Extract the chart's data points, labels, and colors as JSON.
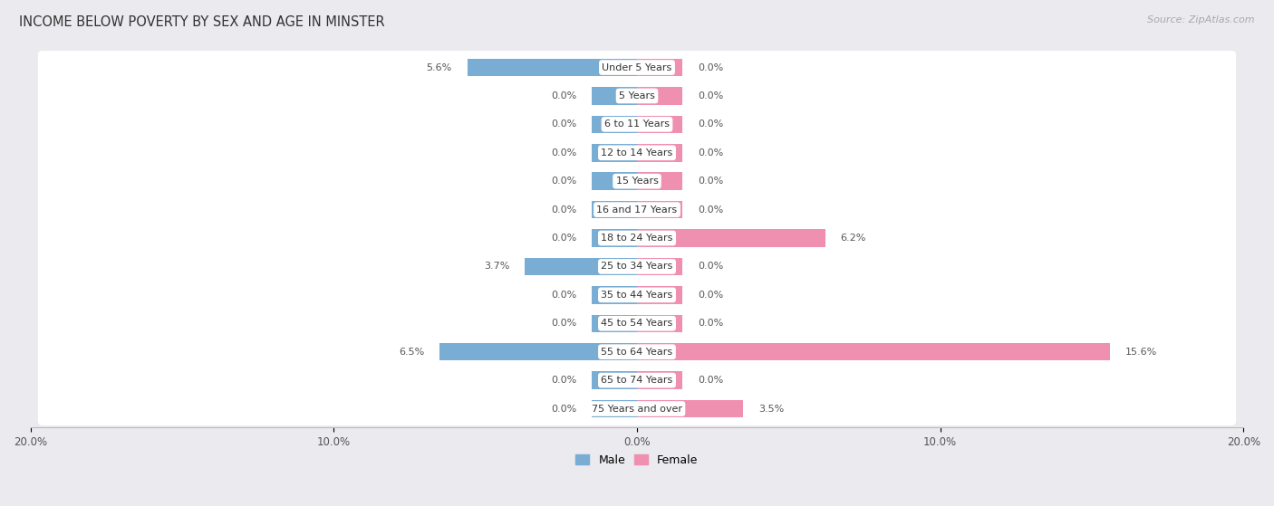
{
  "title": "INCOME BELOW POVERTY BY SEX AND AGE IN MINSTER",
  "source": "Source: ZipAtlas.com",
  "categories": [
    "Under 5 Years",
    "5 Years",
    "6 to 11 Years",
    "12 to 14 Years",
    "15 Years",
    "16 and 17 Years",
    "18 to 24 Years",
    "25 to 34 Years",
    "35 to 44 Years",
    "45 to 54 Years",
    "55 to 64 Years",
    "65 to 74 Years",
    "75 Years and over"
  ],
  "male_values": [
    5.6,
    0.0,
    0.0,
    0.0,
    0.0,
    0.0,
    0.0,
    3.7,
    0.0,
    0.0,
    6.5,
    0.0,
    0.0
  ],
  "female_values": [
    0.0,
    0.0,
    0.0,
    0.0,
    0.0,
    0.0,
    6.2,
    0.0,
    0.0,
    0.0,
    15.6,
    0.0,
    3.5
  ],
  "male_color": "#7aadd4",
  "female_color": "#f090b0",
  "male_label": "Male",
  "female_label": "Female",
  "xlim": 20.0,
  "min_bar": 1.5,
  "bar_height": 0.62,
  "background_color": "#eaeaef",
  "row_bg_color": "#ffffff",
  "title_fontsize": 10.5,
  "label_fontsize": 8.0,
  "value_fontsize": 8.0,
  "tick_fontsize": 8.5,
  "source_fontsize": 8.0,
  "legend_fontsize": 9
}
